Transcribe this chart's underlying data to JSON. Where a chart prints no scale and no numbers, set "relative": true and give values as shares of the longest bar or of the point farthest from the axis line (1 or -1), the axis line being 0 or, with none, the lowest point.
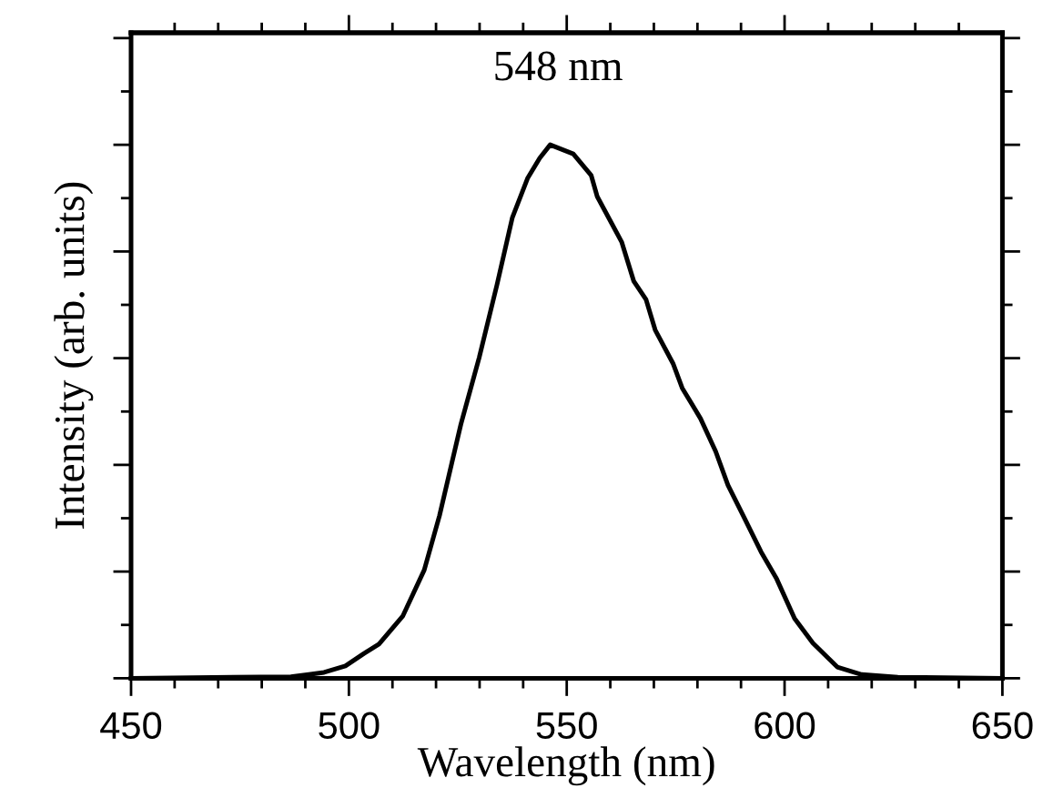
{
  "chart_data": {
    "type": "line",
    "relative": true,
    "xlabel": "Wavelength (nm)",
    "ylabel": "Intensity (arb. units)",
    "annotations": [
      {
        "text": "548 nm",
        "x": 548,
        "y": 1.0
      }
    ],
    "xlim": [
      450,
      650
    ],
    "xticks": [
      450,
      500,
      550,
      600,
      650
    ],
    "grid": false,
    "marker": "none",
    "line_style": "solid",
    "series": [
      {
        "color": "#000000",
        "x": [
          450,
          486.7,
          490.8,
          494.3,
          499.2,
          503.4,
          506.9,
          512.4,
          517.3,
          520.8,
          525.7,
          529.9,
          534.0,
          537.5,
          541.0,
          543.8,
          546.2,
          551.5,
          555.6,
          557.0,
          562.6,
          565.4,
          568.2,
          570.3,
          574.4,
          576.5,
          580.7,
          584.2,
          587.0,
          590.5,
          594.6,
          598.2,
          602.3,
          606.5,
          612.1,
          617.7,
          626.0,
          650
        ],
        "values": [
          0,
          0.003,
          0.007,
          0.011,
          0.023,
          0.046,
          0.064,
          0.117,
          0.203,
          0.305,
          0.476,
          0.601,
          0.738,
          0.863,
          0.937,
          0.975,
          1.0,
          0.983,
          0.943,
          0.903,
          0.818,
          0.744,
          0.71,
          0.653,
          0.59,
          0.544,
          0.487,
          0.425,
          0.362,
          0.305,
          0.237,
          0.186,
          0.112,
          0.066,
          0.021,
          0.007,
          0.002,
          0
        ]
      }
    ]
  }
}
